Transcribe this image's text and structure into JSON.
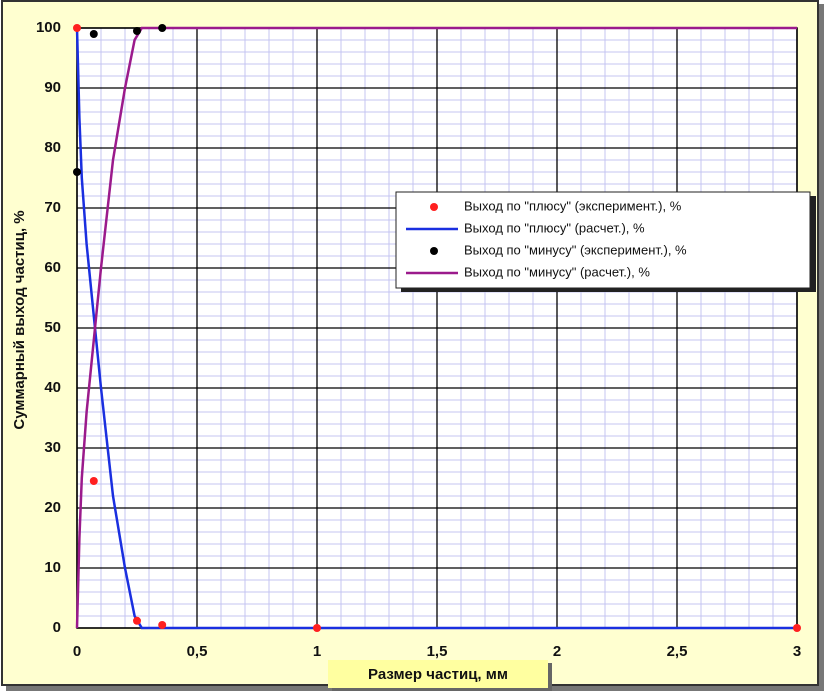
{
  "chart_data": {
    "type": "line",
    "x_label": "Размер частиц, мм",
    "y_label": "Суммарный выход частиц, %",
    "xlim": [
      0,
      3
    ],
    "ylim": [
      0,
      100
    ],
    "xticks": [
      0,
      {
        "value": 0.5,
        "label": "0,5"
      },
      1,
      {
        "value": 1.5,
        "label": "1,5"
      },
      2,
      {
        "value": 2.5,
        "label": "2,5"
      },
      3
    ],
    "yticks": [
      0,
      10,
      20,
      30,
      40,
      50,
      60,
      70,
      80,
      90,
      100
    ],
    "grid": true,
    "legend": "right",
    "series": [
      {
        "name": "Выход по \"плюсу\" (эксперимент.), %",
        "kind": "scatter",
        "color": "#ff2020",
        "x": [
          0,
          0.07,
          0.25,
          0.355,
          1,
          3
        ],
        "values": [
          100,
          24.5,
          1.2,
          0.5,
          0,
          0
        ]
      },
      {
        "name": "Выход по \"плюсу\" (расчет.), %",
        "kind": "line",
        "color": "#1a2fe0",
        "x": [
          0,
          0.01,
          0.02,
          0.04,
          0.07,
          0.1,
          0.15,
          0.2,
          0.24,
          0.27,
          3
        ],
        "values": [
          100,
          85,
          75,
          64,
          52,
          40,
          22,
          10,
          2,
          0,
          0
        ]
      },
      {
        "name": "Выход по \"минусу\" (эксперимент.), %",
        "kind": "scatter",
        "color": "#000000",
        "x": [
          0,
          0.07,
          0.25,
          0.355
        ],
        "values": [
          76,
          99,
          99.5,
          100
        ]
      },
      {
        "name": "Выход по \"минусу\" (расчет.), %",
        "kind": "line",
        "color": "#9b1a8c",
        "x": [
          0,
          0.01,
          0.02,
          0.04,
          0.07,
          0.1,
          0.15,
          0.2,
          0.24,
          0.27,
          3
        ],
        "values": [
          0,
          15,
          25,
          36,
          48,
          60,
          78,
          90,
          98,
          100,
          100
        ]
      }
    ]
  }
}
